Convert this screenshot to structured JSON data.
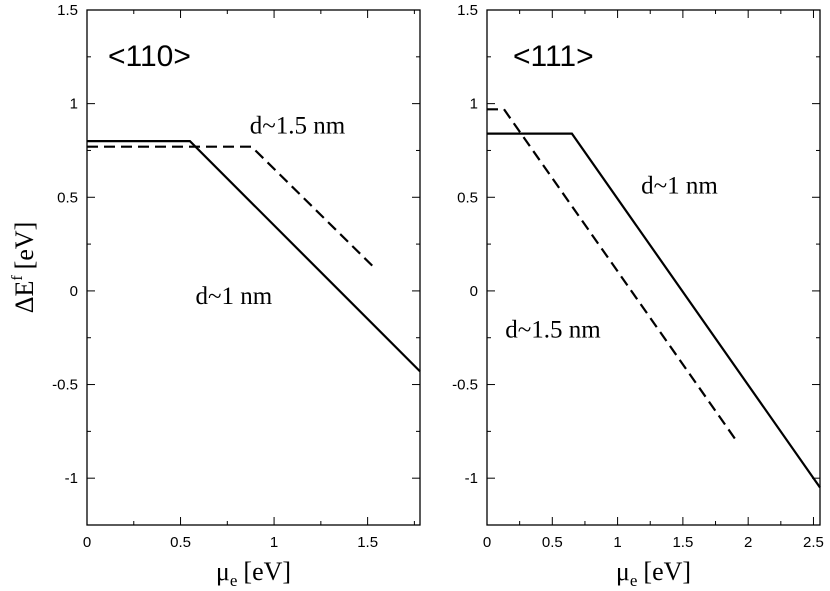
{
  "chart_data": [
    {
      "type": "line",
      "title": "<110>",
      "xlabel_main": "μ",
      "xlabel_sub": "e",
      "xlabel_unit": "[eV]",
      "ylabel_main": "ΔE",
      "ylabel_sup": "f",
      "ylabel_unit": "[eV]",
      "xlim": [
        0,
        1.78
      ],
      "ylim": [
        -1.25,
        1.5
      ],
      "xticks": [
        {
          "value": 0,
          "label": "0"
        },
        {
          "value": 0.5,
          "label": "0.5"
        },
        {
          "value": 1,
          "label": "1"
        },
        {
          "value": 1.5,
          "label": "1.5"
        }
      ],
      "yticks": [
        {
          "value": 1.5,
          "label": "1.5"
        },
        {
          "value": 1,
          "label": "1"
        },
        {
          "value": 0.5,
          "label": "0.5"
        },
        {
          "value": 0,
          "label": "0"
        },
        {
          "value": -0.5,
          "label": "-0.5"
        },
        {
          "value": -1,
          "label": "-1"
        }
      ],
      "grid": false,
      "series": [
        {
          "style": "solid",
          "points": [
            [
              0,
              0.8
            ],
            [
              0.55,
              0.8
            ],
            [
              1.78,
              -0.43
            ]
          ]
        },
        {
          "style": "dashed",
          "points": [
            [
              0,
              0.77
            ],
            [
              0.88,
              0.77
            ],
            [
              1.53,
              0.13
            ]
          ]
        }
      ],
      "annotations": [
        {
          "text": "d~1.5 nm",
          "x": 0.87,
          "y": 0.84
        },
        {
          "text": "d~1 nm",
          "x": 0.58,
          "y": -0.07
        }
      ]
    },
    {
      "type": "line",
      "title": "<111>",
      "xlabel_main": "μ",
      "xlabel_sub": "e",
      "xlabel_unit": "[eV]",
      "xlim": [
        0,
        2.55
      ],
      "ylim": [
        -1.25,
        1.5
      ],
      "xticks": [
        {
          "value": 0,
          "label": "0"
        },
        {
          "value": 0.5,
          "label": "0.5"
        },
        {
          "value": 1,
          "label": "1"
        },
        {
          "value": 1.5,
          "label": "1.5"
        },
        {
          "value": 2,
          "label": "2"
        },
        {
          "value": 2.5,
          "label": "2.5"
        }
      ],
      "yticks": [
        {
          "value": 1.5,
          "label": "1.5"
        },
        {
          "value": 1,
          "label": "1"
        },
        {
          "value": 0.5,
          "label": "0.5"
        },
        {
          "value": 0,
          "label": "0"
        },
        {
          "value": -0.5,
          "label": "-0.5"
        },
        {
          "value": -1,
          "label": "-1"
        }
      ],
      "grid": false,
      "series": [
        {
          "style": "solid",
          "points": [
            [
              0,
              0.84
            ],
            [
              0.65,
              0.84
            ],
            [
              2.55,
              -1.05
            ]
          ]
        },
        {
          "style": "dashed",
          "points": [
            [
              0,
              0.97
            ],
            [
              0.13,
              0.97
            ],
            [
              1.92,
              -0.81
            ]
          ]
        }
      ],
      "annotations": [
        {
          "text": "d~1 nm",
          "x": 1.18,
          "y": 0.52
        },
        {
          "text": "d~1.5 nm",
          "x": 0.14,
          "y": -0.25
        }
      ]
    }
  ]
}
